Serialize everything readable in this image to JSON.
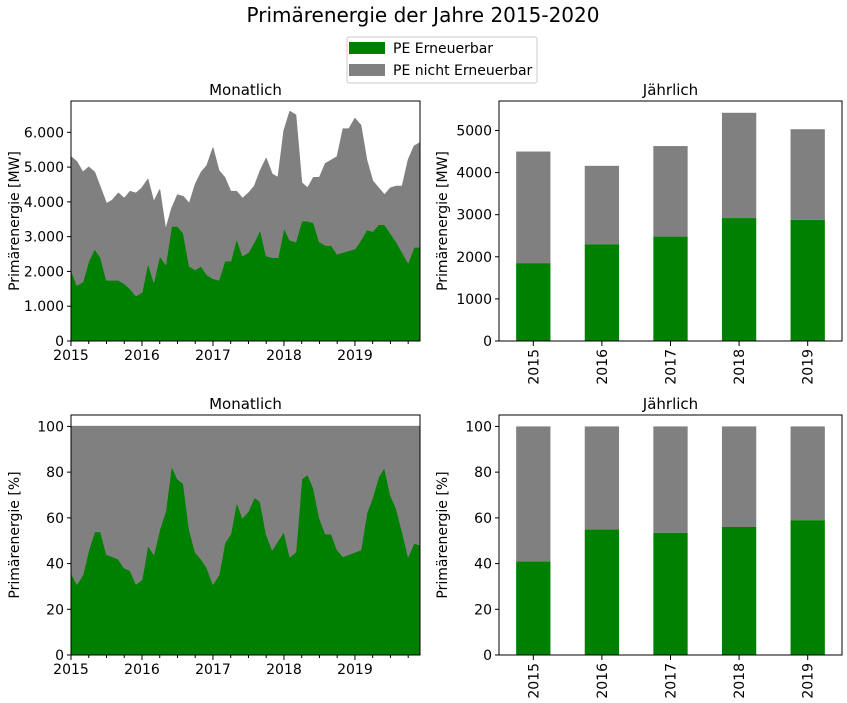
{
  "title": "Primärenergie der Jahre 2015-2020",
  "legend": [
    {
      "label": "PE Erneuerbar",
      "color": "#008000"
    },
    {
      "label": "PE nicht Erneuerbar",
      "color": "#808080"
    }
  ],
  "colors": {
    "renewable": "#008000",
    "nonrenewable": "#808080"
  },
  "chart_data": [
    {
      "type": "area",
      "stacked": true,
      "title": "Monatlich",
      "xlabel": "",
      "ylabel": "Primärenergie [MW]",
      "x_start": "2015-01",
      "x_end": "2019-12",
      "x_ticks": [
        "2015",
        "2016",
        "2017",
        "2018",
        "2019"
      ],
      "y_ticks": [
        "0",
        "1.000",
        "2.000",
        "3.000",
        "4.000",
        "5.000",
        "6.000"
      ],
      "ylim": [
        0,
        6900
      ],
      "series": [
        {
          "name": "PE Erneuerbar",
          "values": [
            2050,
            1600,
            1700,
            2300,
            2650,
            2400,
            1750,
            1750,
            1750,
            1650,
            1500,
            1300,
            1400,
            2250,
            1700,
            2450,
            2200,
            3300,
            3300,
            3100,
            2150,
            2050,
            2150,
            1900,
            1800,
            1750,
            2300,
            2300,
            2950,
            2450,
            2550,
            2850,
            3200,
            2450,
            2400,
            2400,
            3250,
            2900,
            2850,
            3450,
            3450,
            3400,
            2850,
            2750,
            2750,
            2500,
            2550,
            2600,
            2650,
            2900,
            3200,
            3150,
            3350,
            3350,
            3100,
            2850,
            2550,
            2250,
            2700,
            2700
          ]
        },
        {
          "name": "PE nicht Erneuerbar",
          "values": [
            3250,
            3550,
            3150,
            2700,
            2200,
            2000,
            2200,
            2300,
            2500,
            2450,
            2800,
            2950,
            3000,
            2400,
            2300,
            1900,
            1000,
            500,
            900,
            1050,
            1800,
            2450,
            2700,
            3150,
            3750,
            3150,
            2400,
            2000,
            1350,
            1650,
            1700,
            1600,
            1700,
            2800,
            2400,
            2300,
            2800,
            3700,
            3650,
            1100,
            950,
            1300,
            1850,
            2350,
            2450,
            2800,
            3550,
            3500,
            3750,
            3300,
            2000,
            1450,
            1050,
            850,
            1300,
            1600,
            1900,
            2950,
            2900,
            3000
          ]
        }
      ]
    },
    {
      "type": "bar",
      "stacked": true,
      "title": "Jährlich",
      "xlabel": "",
      "ylabel": "Primärenergie [MW]",
      "categories": [
        "2015",
        "2016",
        "2017",
        "2018",
        "2019"
      ],
      "y_ticks": [
        "0",
        "1000",
        "2000",
        "3000",
        "4000",
        "5000"
      ],
      "ylim": [
        0,
        5700
      ],
      "series": [
        {
          "name": "PE Erneuerbar",
          "values": [
            1850,
            2300,
            2480,
            2920,
            2880
          ]
        },
        {
          "name": "PE nicht Erneuerbar",
          "values": [
            2650,
            1860,
            2150,
            2500,
            2150
          ]
        }
      ]
    },
    {
      "type": "area",
      "stacked": true,
      "title": "Monatlich",
      "xlabel": "",
      "ylabel": "Primärenergie [%]",
      "x_start": "2015-01",
      "x_end": "2019-12",
      "x_ticks": [
        "2015",
        "2016",
        "2017",
        "2018",
        "2019"
      ],
      "y_ticks": [
        "0",
        "20",
        "40",
        "60",
        "80",
        "100"
      ],
      "ylim": [
        0,
        105
      ],
      "series": [
        {
          "name": "PE Erneuerbar",
          "values": [
            36,
            31,
            35,
            46,
            54,
            54,
            44,
            43,
            42,
            38,
            37,
            31,
            33,
            48,
            44,
            55,
            63,
            83,
            77,
            75,
            55,
            45,
            42,
            38,
            31,
            35,
            49,
            53,
            67,
            60,
            63,
            69,
            67,
            53,
            46,
            50,
            54,
            43,
            45,
            77,
            79,
            73,
            60,
            53,
            53,
            46,
            43,
            44,
            45,
            46,
            62,
            69,
            78,
            82,
            70,
            64,
            54,
            43,
            49,
            48
          ]
        },
        {
          "name": "PE nicht Erneuerbar",
          "values": [
            64,
            69,
            65,
            54,
            46,
            46,
            56,
            57,
            58,
            62,
            63,
            69,
            67,
            52,
            56,
            45,
            37,
            17,
            23,
            25,
            45,
            55,
            58,
            62,
            69,
            65,
            51,
            47,
            33,
            40,
            37,
            31,
            33,
            47,
            54,
            50,
            46,
            57,
            55,
            23,
            21,
            27,
            40,
            47,
            47,
            54,
            57,
            56,
            55,
            54,
            38,
            31,
            22,
            18,
            30,
            36,
            46,
            57,
            51,
            52
          ]
        }
      ]
    },
    {
      "type": "bar",
      "stacked": true,
      "title": "Jährlich",
      "xlabel": "",
      "ylabel": "Primärenergie [%]",
      "categories": [
        "2015",
        "2016",
        "2017",
        "2018",
        "2019"
      ],
      "y_ticks": [
        "0",
        "20",
        "40",
        "60",
        "80",
        "100"
      ],
      "ylim": [
        0,
        105
      ],
      "series": [
        {
          "name": "PE Erneuerbar",
          "values": [
            41,
            55,
            53.5,
            56,
            59
          ]
        },
        {
          "name": "PE nicht Erneuerbar",
          "values": [
            59,
            45,
            46.5,
            44,
            41
          ]
        }
      ]
    }
  ]
}
